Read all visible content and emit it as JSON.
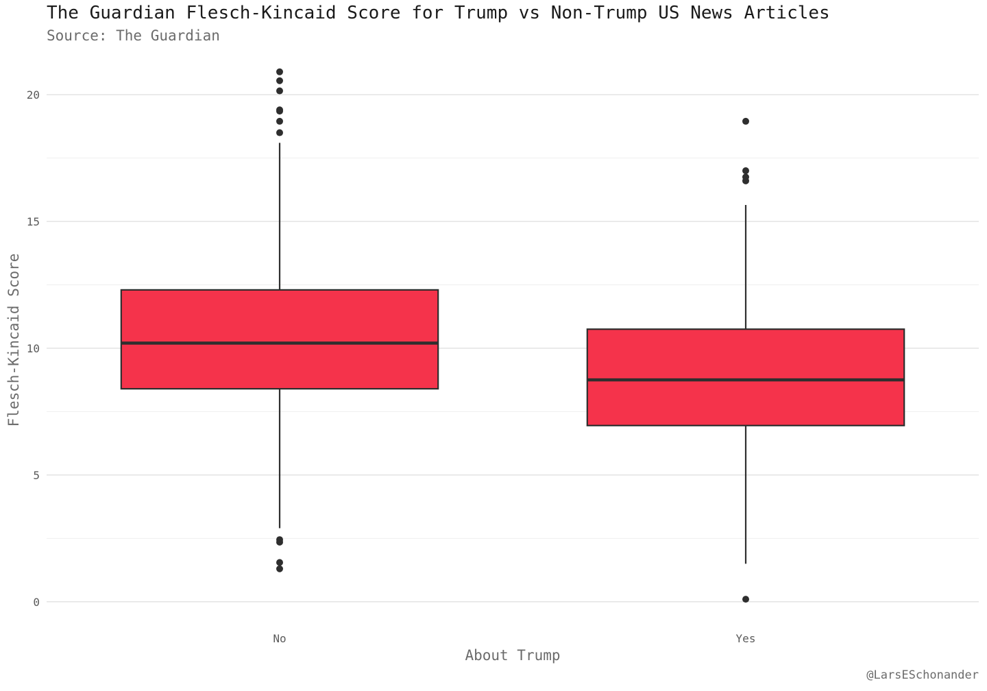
{
  "chart_data": {
    "type": "box",
    "title": "The Guardian Flesch-Kincaid Score for Trump vs Non-Trump US News Articles",
    "subtitle": "Source: The Guardian",
    "caption": "@LarsESchonander",
    "xlabel": "About Trump",
    "ylabel": "Flesch-Kincaid Score",
    "ylim": [
      -0.6,
      21.3
    ],
    "yticks": [
      0,
      5,
      10,
      15,
      20
    ],
    "grid": true,
    "fill_color": "#f5334b",
    "line_color": "#2e2e2e",
    "categories": [
      "No",
      "Yes"
    ],
    "boxes": [
      {
        "category": "No",
        "whisker_low": 2.9,
        "q1": 8.4,
        "median": 10.2,
        "q3": 12.3,
        "whisker_high": 18.1,
        "outliers": [
          20.9,
          20.55,
          20.15,
          19.4,
          19.35,
          18.95,
          18.5,
          2.45,
          2.35,
          1.55,
          1.3
        ]
      },
      {
        "category": "Yes",
        "whisker_low": 1.5,
        "q1": 6.95,
        "median": 8.75,
        "q3": 10.75,
        "whisker_high": 15.65,
        "outliers": [
          18.95,
          17.0,
          16.75,
          16.6,
          0.1
        ]
      }
    ]
  }
}
